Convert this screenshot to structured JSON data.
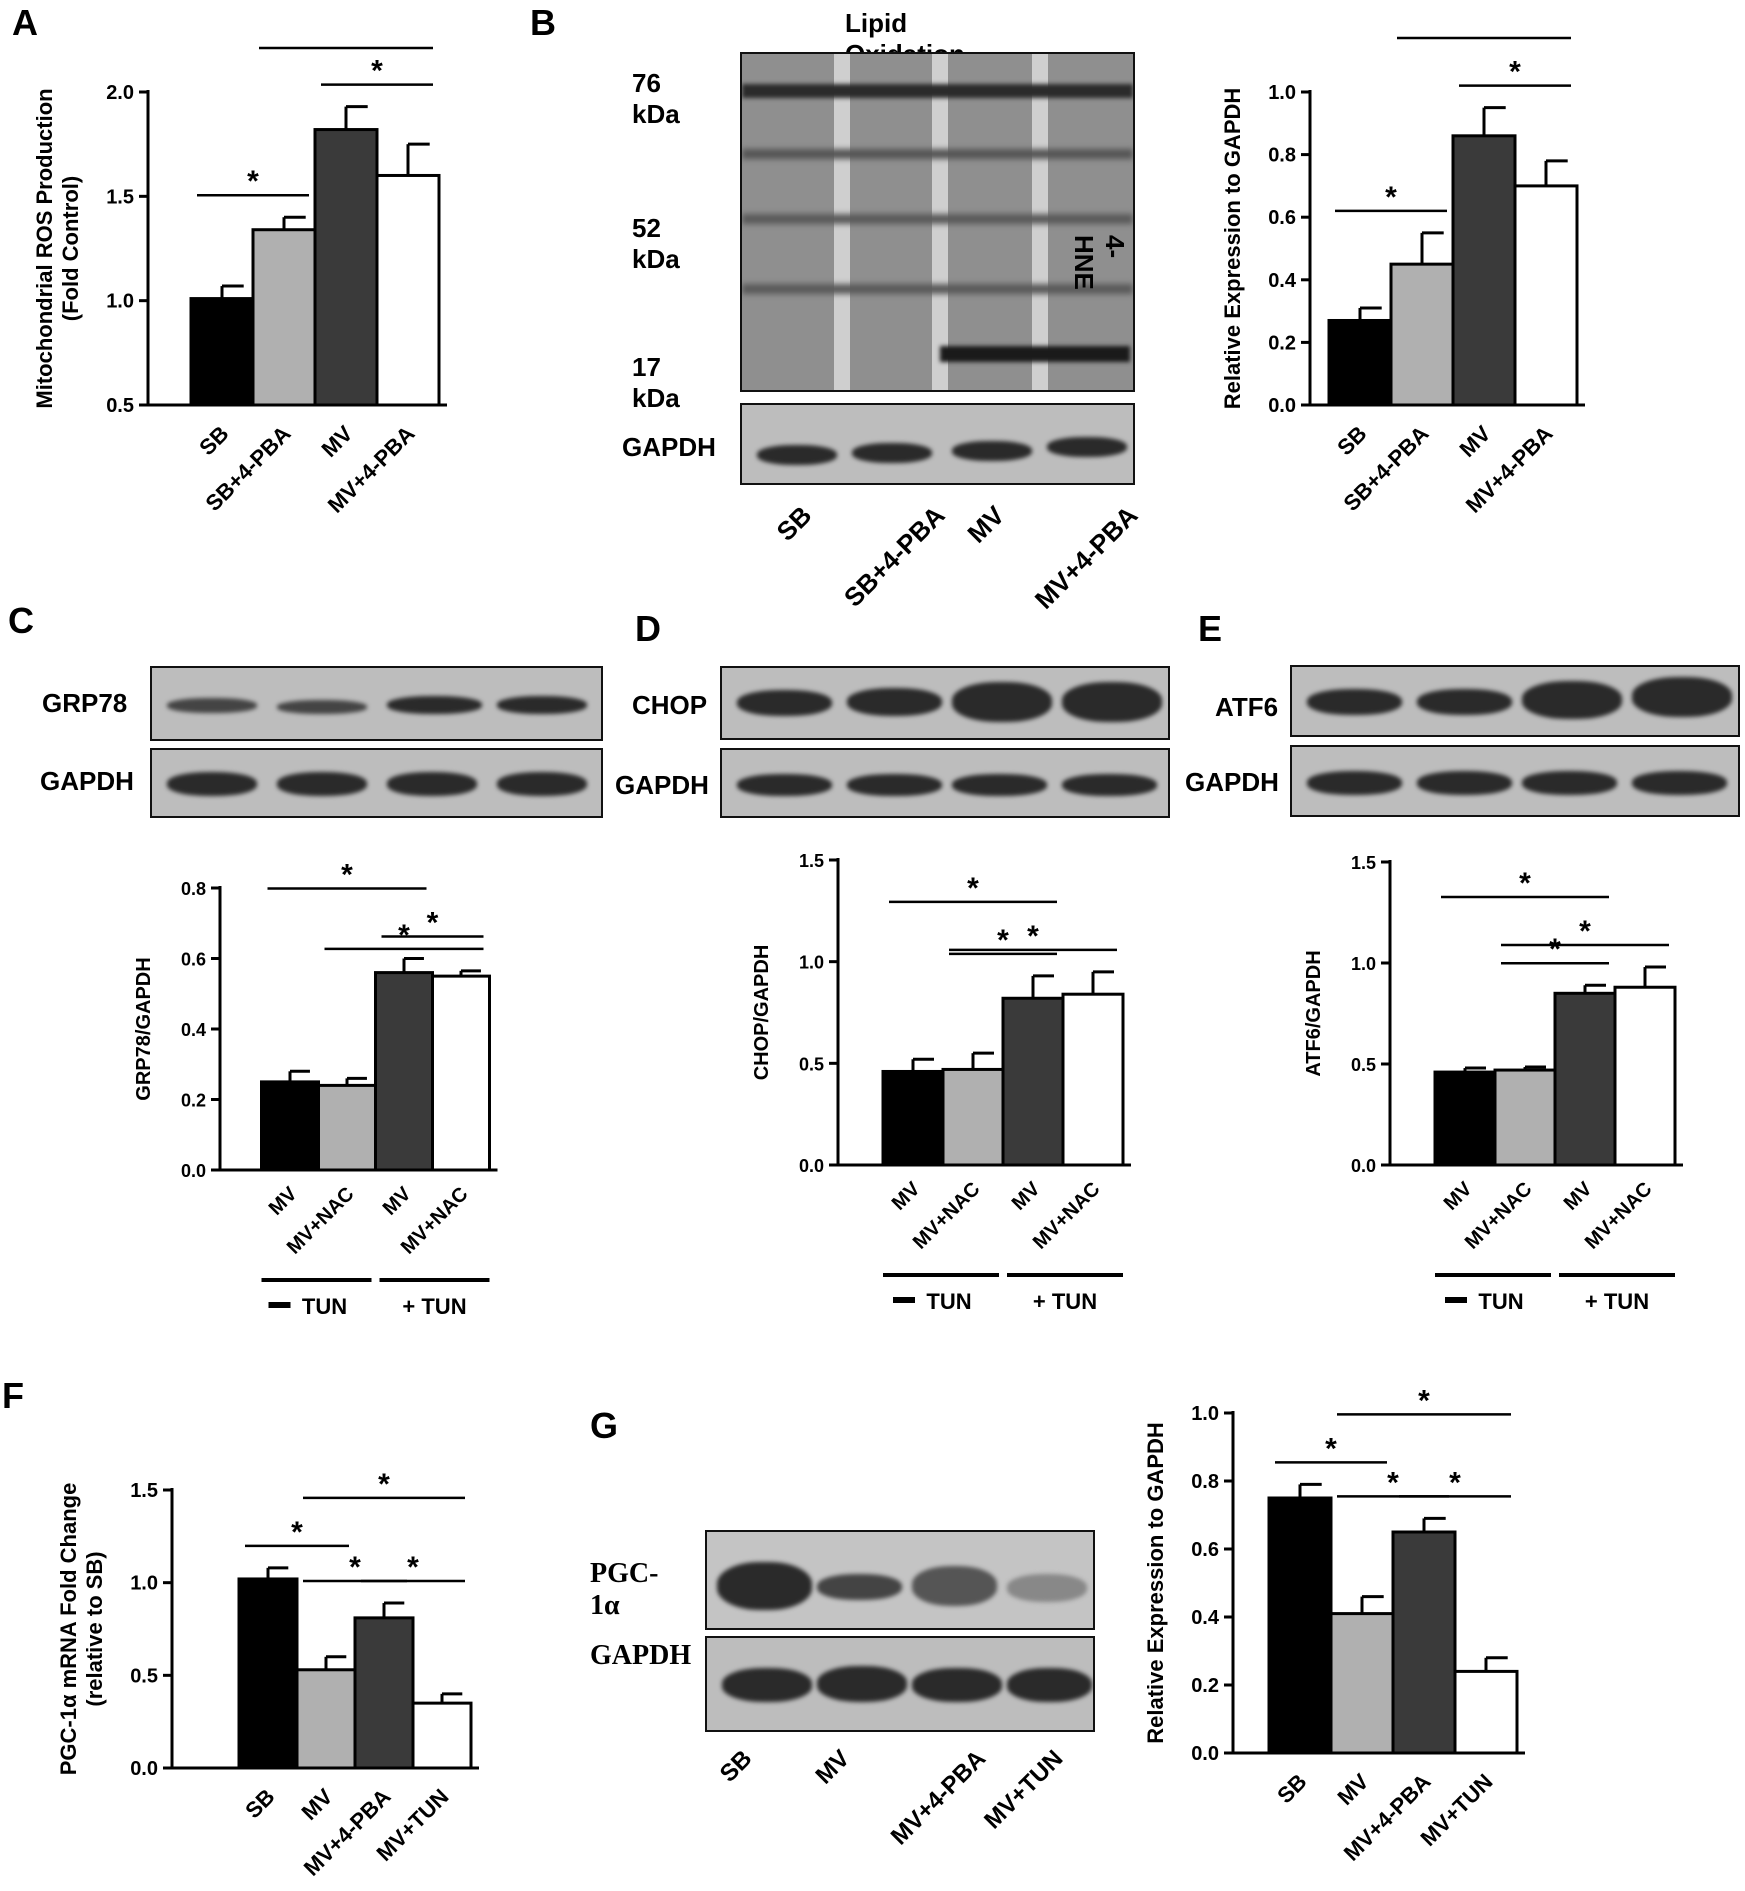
{
  "panel_letters": [
    "A",
    "B",
    "C",
    "D",
    "E",
    "F",
    "G"
  ],
  "colors": {
    "bar_fills": [
      "#000000",
      "#b0b0b0",
      "#3a3a3a",
      "#ffffff"
    ]
  },
  "blots": {
    "b": {
      "title": "Lipid Oxidation",
      "mw": [
        "76 kDa",
        "52 kDa",
        "17 kDa"
      ],
      "target": "4-HNE",
      "loading": "GAPDH",
      "lanes": [
        "SB",
        "SB+4-PBA",
        "MV",
        "MV+4-PBA"
      ]
    },
    "c": {
      "target": "GRP78",
      "loading": "GAPDH"
    },
    "d": {
      "target": "CHOP",
      "loading": "GAPDH"
    },
    "e": {
      "target": "ATF6",
      "loading": "GAPDH"
    },
    "g": {
      "target": "PGC-1α",
      "loading": "GAPDH",
      "lanes": [
        "SB",
        "MV",
        "MV+4-PBA",
        "MV+TUN"
      ]
    }
  },
  "chart_data": [
    {
      "id": "A",
      "type": "bar",
      "categories": [
        "SB",
        "SB+4-PBA",
        "MV",
        "MV+4-PBA"
      ],
      "values": [
        1.01,
        1.34,
        1.82,
        1.6
      ],
      "errors": [
        0.06,
        0.06,
        0.11,
        0.15
      ],
      "ylabel": [
        "Mitochondrial ROS Production",
        "(Fold Control)"
      ],
      "ylim": [
        0.5,
        2.0
      ],
      "yticks": [
        "0.5",
        "1.0",
        "1.5",
        "2.0"
      ],
      "sig": [
        [
          0,
          1
        ],
        [
          2,
          3
        ],
        [
          1,
          3
        ]
      ],
      "groups": []
    },
    {
      "id": "B",
      "type": "bar",
      "categories": [
        "SB",
        "SB+4-PBA",
        "MV",
        "MV+4-PBA"
      ],
      "values": [
        0.27,
        0.45,
        0.86,
        0.7
      ],
      "errors": [
        0.04,
        0.1,
        0.09,
        0.08
      ],
      "ylabel": [
        "Relative Expression to GAPDH"
      ],
      "ylim": [
        0,
        1.0
      ],
      "yticks": [
        "0.0",
        "0.2",
        "0.4",
        "0.6",
        "0.8",
        "1.0"
      ],
      "sig": [
        [
          0,
          1
        ],
        [
          2,
          3
        ],
        [
          1,
          3
        ]
      ],
      "groups": []
    },
    {
      "id": "C",
      "type": "bar",
      "categories": [
        "MV",
        "MV+NAC",
        "MV",
        "MV+NAC"
      ],
      "values": [
        0.25,
        0.24,
        0.56,
        0.55
      ],
      "errors": [
        0.03,
        0.02,
        0.04,
        0.015
      ],
      "ylabel": [
        "GRP78/GAPDH"
      ],
      "ylim": [
        0,
        0.8
      ],
      "yticks": [
        "0.0",
        "0.2",
        "0.4",
        "0.6",
        "0.8"
      ],
      "sig": [
        [
          2,
          3
        ],
        [
          1,
          3
        ],
        [
          0,
          2
        ]
      ],
      "groups": [
        "TUN",
        "+ TUN"
      ]
    },
    {
      "id": "D",
      "type": "bar",
      "categories": [
        "MV",
        "MV+NAC",
        "MV",
        "MV+NAC"
      ],
      "values": [
        0.46,
        0.47,
        0.82,
        0.84
      ],
      "errors": [
        0.06,
        0.08,
        0.11,
        0.11
      ],
      "ylabel": [
        "CHOP/GAPDH"
      ],
      "ylim": [
        0,
        1.5
      ],
      "yticks": [
        "0.0",
        "0.5",
        "1.0",
        "1.5"
      ],
      "sig": [
        [
          1,
          2
        ],
        [
          1,
          3
        ],
        [
          0,
          2
        ]
      ],
      "groups": [
        "TUN",
        "+ TUN"
      ]
    },
    {
      "id": "E",
      "type": "bar",
      "categories": [
        "MV",
        "MV+NAC",
        "MV",
        "MV+NAC"
      ],
      "values": [
        0.46,
        0.47,
        0.85,
        0.88
      ],
      "errors": [
        0.02,
        0.015,
        0.04,
        0.1
      ],
      "ylabel": [
        "ATF6/GAPDH"
      ],
      "ylim": [
        0,
        1.5
      ],
      "yticks": [
        "0.0",
        "0.5",
        "1.0",
        "1.5"
      ],
      "sig": [
        [
          1,
          2
        ],
        [
          1,
          3
        ],
        [
          0,
          2
        ]
      ],
      "groups": [
        "TUN",
        "+ TUN"
      ]
    },
    {
      "id": "F",
      "type": "bar",
      "categories": [
        "SB",
        "MV",
        "MV+4-PBA",
        "MV+TUN"
      ],
      "values": [
        1.02,
        0.53,
        0.81,
        0.35
      ],
      "errors": [
        0.06,
        0.07,
        0.08,
        0.05
      ],
      "ylabel": [
        "PGC-1α mRNA Fold Change",
        "(relative to SB)"
      ],
      "ylim": [
        0,
        1.5
      ],
      "yticks": [
        "0.0",
        "0.5",
        "1.0",
        "1.5"
      ],
      "sig": [
        [
          0,
          1
        ],
        [
          1,
          2
        ],
        [
          2,
          3
        ],
        [
          1,
          3
        ]
      ],
      "groups": []
    },
    {
      "id": "G",
      "type": "bar",
      "categories": [
        "SB",
        "MV",
        "MV+4-PBA",
        "MV+TUN"
      ],
      "values": [
        0.75,
        0.41,
        0.65,
        0.24
      ],
      "errors": [
        0.04,
        0.05,
        0.04,
        0.04
      ],
      "ylabel": [
        "Relative Expression to GAPDH"
      ],
      "ylim": [
        0,
        1.0
      ],
      "yticks": [
        "0.0",
        "0.2",
        "0.4",
        "0.6",
        "0.8",
        "1.0"
      ],
      "sig": [
        [
          0,
          1
        ],
        [
          1,
          2
        ],
        [
          2,
          3
        ],
        [
          1,
          3
        ]
      ],
      "groups": []
    }
  ]
}
